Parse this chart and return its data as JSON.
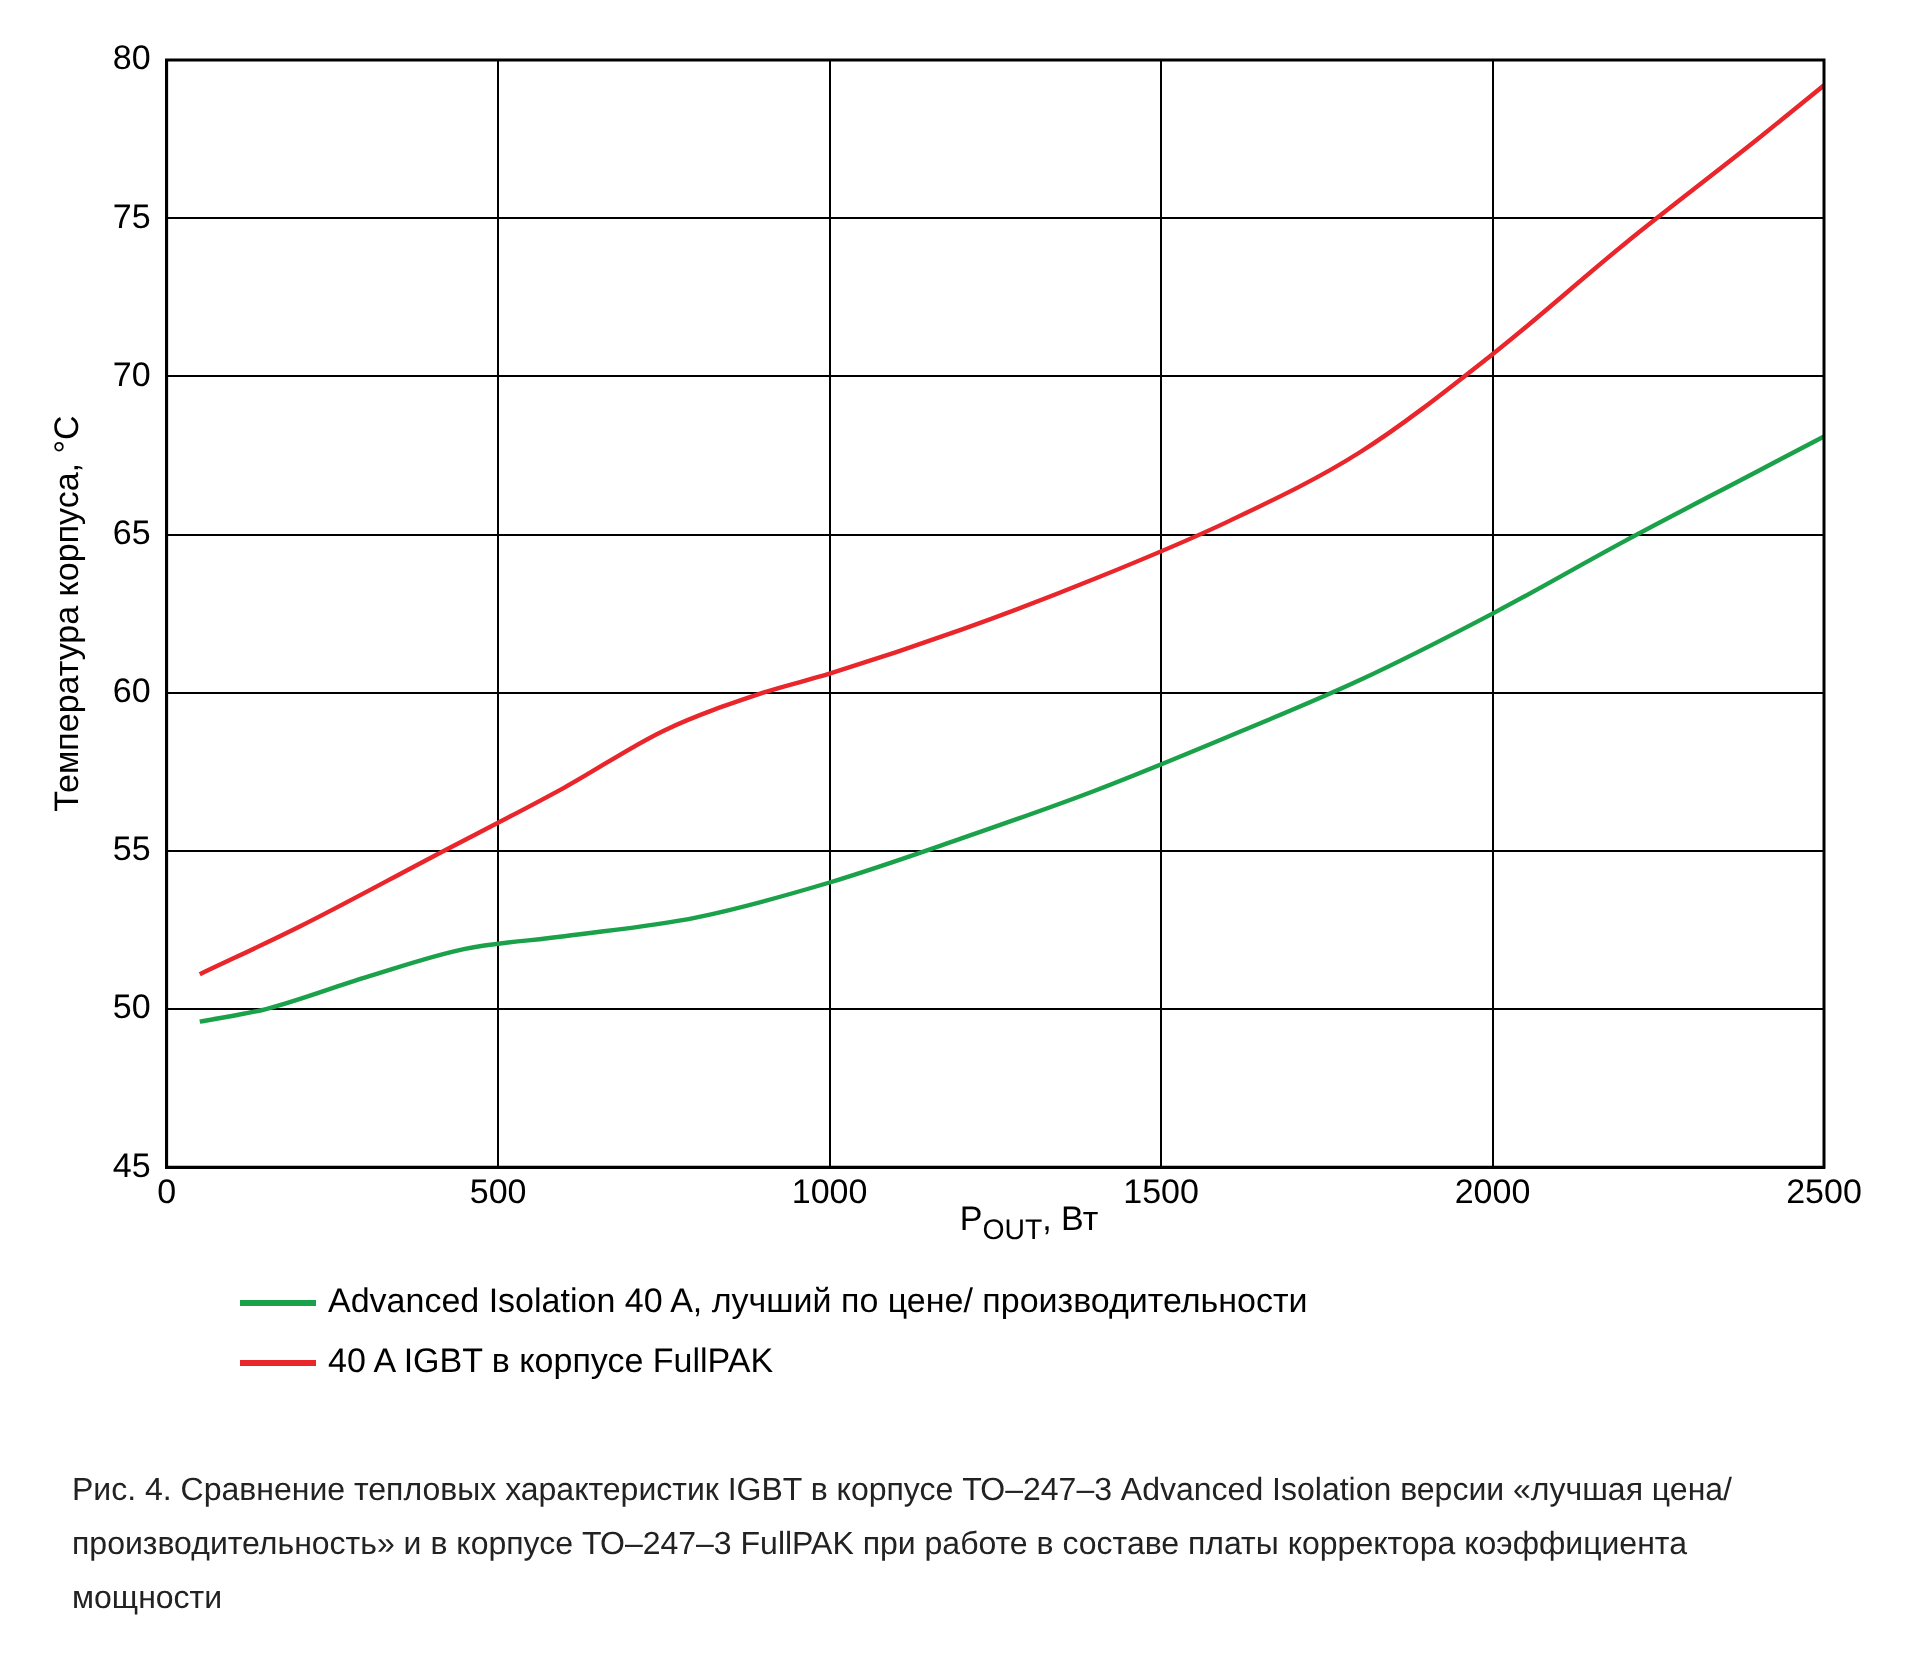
{
  "chart_data": {
    "type": "line",
    "xlabel": "P$_{OUT}$, Вт",
    "ylabel": "Температура корпуса, °C",
    "x": [
      50,
      150,
      300,
      450,
      600,
      800,
      1000,
      1200,
      1400,
      1600,
      1800,
      2000,
      2200,
      2400,
      2500
    ],
    "series": [
      {
        "name": "Advanced Isolation 40 A, лучший по цене/ производительности",
        "color": "#1aa14a",
        "values": [
          49.6,
          50.0,
          51.0,
          51.9,
          52.3,
          52.9,
          54.0,
          55.4,
          56.9,
          58.6,
          60.4,
          62.5,
          64.8,
          67.0,
          68.1
        ]
      },
      {
        "name": "40 A IGBT в корпусе FullPAK",
        "color": "#e8262b",
        "x": [
          50,
          200,
          400,
          600,
          750,
          900,
          1000,
          1200,
          1400,
          1600,
          1800,
          2000,
          2200,
          2400,
          2500
        ],
        "values": [
          51.1,
          52.6,
          54.8,
          57.0,
          58.8,
          60.0,
          60.6,
          62.0,
          63.6,
          65.4,
          67.6,
          70.7,
          74.2,
          77.5,
          79.2
        ]
      }
    ],
    "xlim": [
      0,
      2500
    ],
    "xticks": [
      0,
      500,
      1000,
      1500,
      2000,
      2500
    ],
    "ylim": [
      45,
      80
    ],
    "yticks": [
      45,
      50,
      55,
      60,
      65,
      70,
      75,
      80
    ],
    "grid": true,
    "legend": "bottom",
    "marker": "none",
    "line_style": "solid",
    "annotations": [
      "Рис. 4. Сравнение тепловых характеристик IGBT в корпусе ТО–247–3 Advanced Isolation версии «лучшая цена/производительность» и в корпусе ТО–247–3 FullPAK при работе в составе платы корректора коэффициента мощности"
    ]
  }
}
